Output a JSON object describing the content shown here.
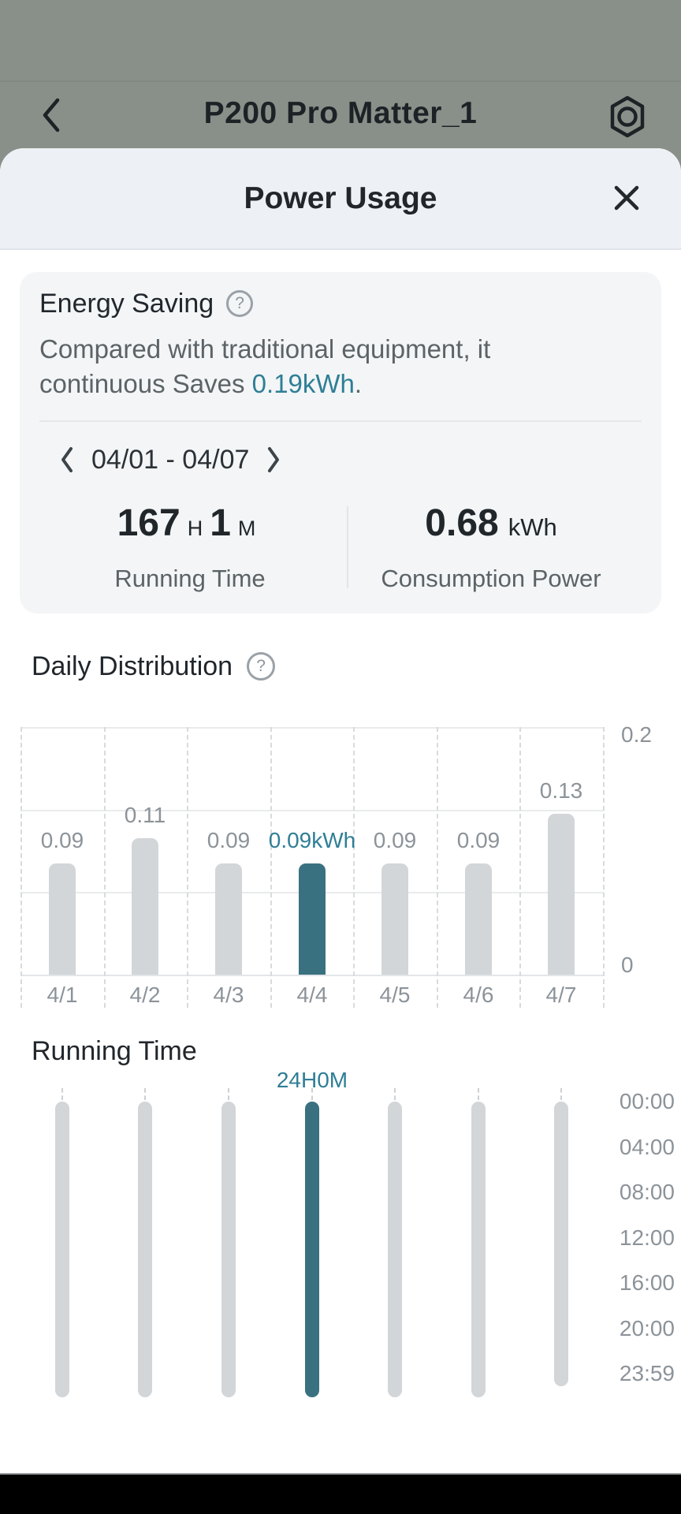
{
  "colors": {
    "accent_teal_text": "#2f7e95",
    "accent_teal_bar": "#3a7181",
    "bar_gray": "#d2d6d9",
    "header_background": "#899089",
    "sheet_header_background": "#edf0f4",
    "card_background": "#f3f5f7",
    "bottom_bar": "#000000"
  },
  "app_header": {
    "title": "P200 Pro Matter_1"
  },
  "sheet": {
    "title": "Power Usage"
  },
  "energy_card": {
    "title": "Energy Saving",
    "help_glyph": "?",
    "desc_line1": "Compared with traditional equipment, it",
    "desc_line2_prefix": "continuous Saves ",
    "desc_value": "0.19kWh",
    "desc_suffix": ".",
    "date_range": "04/01 - 04/07",
    "running_time": {
      "hours": "167",
      "hours_unit": "H",
      "minutes": "1",
      "minutes_unit": "M",
      "label": "Running Time"
    },
    "consumption": {
      "value": "0.68",
      "unit": "kWh",
      "label": "Consumption Power"
    }
  },
  "daily_section": {
    "title": "Daily Distribution",
    "help_glyph": "?"
  },
  "running_section": {
    "title": "Running Time"
  },
  "chart_data": [
    {
      "type": "bar",
      "title": "Daily Distribution",
      "categories": [
        "4/1",
        "4/2",
        "4/3",
        "4/4",
        "4/5",
        "4/6",
        "4/7"
      ],
      "values": [
        0.09,
        0.11,
        0.09,
        0.09,
        0.09,
        0.09,
        0.13
      ],
      "value_labels": [
        "0.09",
        "0.11",
        "0.09",
        "0.09kWh",
        "0.09",
        "0.09",
        "0.13"
      ],
      "highlight_index": 3,
      "unit": "kWh",
      "ylim": [
        0,
        0.2
      ],
      "y_tick_labels": [
        {
          "label": "0.2",
          "value": 0.2
        },
        {
          "label": "0",
          "value": 0
        }
      ],
      "grid": "vertical dashed column separators, 4 horizontal lines, y axis labels on right"
    },
    {
      "type": "bar",
      "title": "Running Time",
      "subtype": "daily time-span capsules, 00:00 at top to 23:59 at bottom, time axis on right",
      "categories": [
        "4/1",
        "4/2",
        "4/3",
        "4/4",
        "4/5",
        "4/6",
        "4/7"
      ],
      "spans_minutes": [
        [
          0,
          1439
        ],
        [
          0,
          1439
        ],
        [
          0,
          1439
        ],
        [
          0,
          1439
        ],
        [
          0,
          1439
        ],
        [
          0,
          1439
        ],
        [
          0,
          1385
        ]
      ],
      "highlight_index": 3,
      "highlight_label": "24H0M",
      "time_ticks": [
        {
          "label": "00:00",
          "minutes": 0
        },
        {
          "label": "04:00",
          "minutes": 240
        },
        {
          "label": "08:00",
          "minutes": 480
        },
        {
          "label": "12:00",
          "minutes": 720
        },
        {
          "label": "16:00",
          "minutes": 960
        },
        {
          "label": "20:00",
          "minutes": 1200
        },
        {
          "label": "23:59",
          "minutes": 1439
        }
      ]
    }
  ]
}
